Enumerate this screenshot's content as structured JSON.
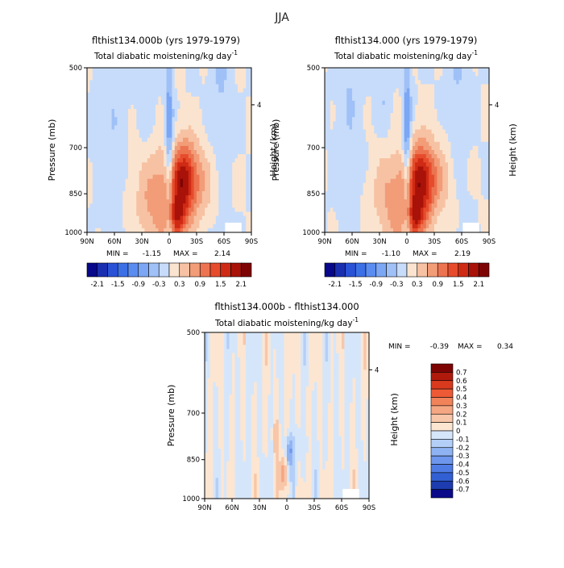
{
  "page_title": "JJA",
  "chart_data": [
    {
      "type": "heatmap",
      "id": "panel-a",
      "title": "flthist134.000b (yrs 1979-1979)",
      "subtitle": "Total diabatic moistening/kg day",
      "subtitle_exp": "-1",
      "ylabel": "Pressure (mb)",
      "ylabel_right": "Height (km)",
      "right_tick_label": "4",
      "x_ticks": [
        "90N",
        "60N",
        "30N",
        "0",
        "30S",
        "60S",
        "90S"
      ],
      "y_ticks": [
        "500",
        "700",
        "850",
        "1000"
      ],
      "min_label": "MIN =",
      "min_value": "-1.15",
      "max_label": "MAX =",
      "max_value": "2.14",
      "colorbar_labels": [
        "-2.1",
        "-1.5",
        "-0.9",
        "-0.3",
        "0.3",
        "0.9",
        "1.5",
        "2.1"
      ],
      "colorbar_colors": [
        "#08088a",
        "#1a2fb0",
        "#2a52d6",
        "#3c70e6",
        "#5b8df0",
        "#7ba7f4",
        "#9fc1f7",
        "#c7dcfa",
        "#fbe4cf",
        "#f7c2a3",
        "#f29c78",
        "#ec7450",
        "#e64c2c",
        "#cf2a14",
        "#a81208",
        "#7e0404"
      ]
    },
    {
      "type": "heatmap",
      "id": "panel-b",
      "title": "flthist134.000 (yrs 1979-1979)",
      "subtitle": "Total diabatic moistening/kg day",
      "subtitle_exp": "-1",
      "ylabel": "Pressure (mb)",
      "ylabel_right": "Height (km)",
      "right_tick_label": "4",
      "x_ticks": [
        "90N",
        "60N",
        "30N",
        "0",
        "30S",
        "60S",
        "90S"
      ],
      "y_ticks": [
        "500",
        "700",
        "850",
        "1000"
      ],
      "min_label": "MIN =",
      "min_value": "-1.10",
      "max_label": "MAX =",
      "max_value": "2.19"
    },
    {
      "type": "heatmap",
      "id": "panel-diff",
      "title": "flthist134.000b - flthist134.000",
      "subtitle": "Total diabatic moistening/kg day",
      "subtitle_exp": "-1",
      "ylabel": "Pressure (mb)",
      "ylabel_right": "Height (km)",
      "right_tick_label": "4",
      "x_ticks": [
        "90N",
        "60N",
        "30N",
        "0",
        "30S",
        "60S",
        "90S"
      ],
      "y_ticks": [
        "500",
        "700",
        "850",
        "1000"
      ],
      "min_label": "MIN =",
      "min_value": "-0.39",
      "max_label": "MAX =",
      "max_value": "0.34",
      "colorbar_labels": [
        "0.7",
        "0.6",
        "0.5",
        "0.4",
        "0.3",
        "0.2",
        "0.1",
        "0",
        "-0.1",
        "-0.2",
        "-0.3",
        "-0.4",
        "-0.5",
        "-0.6",
        "-0.7"
      ],
      "colorbar_colors": [
        "#7e0404",
        "#b01a0c",
        "#d93a1e",
        "#ee5a36",
        "#f2825a",
        "#f5a683",
        "#f8c6a8",
        "#fce6d2",
        "#d6e6fa",
        "#b4cff7",
        "#8fb3f2",
        "#6d96ec",
        "#4f7ce4",
        "#3260d4",
        "#1c3cb0",
        "#0a0a8a"
      ]
    }
  ]
}
